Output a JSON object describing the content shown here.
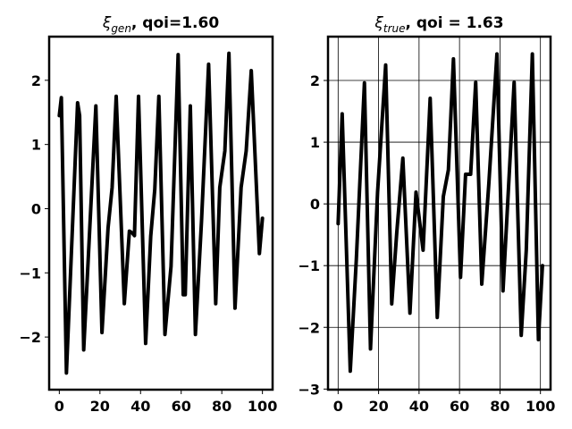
{
  "chart_data": [
    {
      "type": "line",
      "title_symbol": "ξ",
      "title_subscript": "gen",
      "title_rest": ", qoi=1.60",
      "x": [
        0,
        1,
        3.5,
        9,
        10,
        12,
        18,
        21,
        24,
        26,
        28,
        32,
        34.5,
        36,
        37,
        39,
        42.5,
        45,
        47,
        49,
        52,
        55,
        58.5,
        61,
        62,
        64.5,
        67,
        70,
        73.5,
        77,
        79,
        81.5,
        83.5,
        86.5,
        89.5,
        92,
        94.5,
        98.5,
        100
      ],
      "series": [
        {
          "color": "#000000",
          "values": [
            1.45,
            1.73,
            -2.56,
            1.65,
            1.45,
            -2.2,
            1.6,
            -1.93,
            -0.3,
            0.33,
            1.75,
            -1.48,
            -0.35,
            -0.38,
            -0.42,
            1.75,
            -2.1,
            -0.43,
            0.3,
            1.75,
            -1.96,
            -0.9,
            2.4,
            -1.34,
            -1.34,
            1.6,
            -1.96,
            -0.2,
            2.25,
            -1.48,
            0.33,
            0.9,
            2.42,
            -1.55,
            0.33,
            0.9,
            2.15,
            -0.7,
            -0.15
          ]
        }
      ],
      "xlim": [
        -5,
        105
      ],
      "ylim": [
        -2.82,
        2.68
      ],
      "xticks": [
        0,
        20,
        40,
        60,
        80,
        100
      ],
      "yticks": [
        {
          "value": -2,
          "label": "−2"
        },
        {
          "value": -1,
          "label": "−1"
        },
        0,
        1,
        2
      ],
      "grid": false
    },
    {
      "type": "line",
      "title_symbol": "ξ",
      "title_subscript": "true",
      "title_rest": ", qoi = 1.63",
      "x": [
        0,
        2,
        6,
        9,
        13,
        16,
        19.5,
        23.5,
        26.5,
        29,
        32,
        35.5,
        38.5,
        42,
        45.5,
        49,
        52,
        54.5,
        57,
        60.5,
        63,
        65.5,
        68,
        71,
        74.5,
        78.5,
        81.5,
        87,
        90.5,
        93,
        96,
        99,
        101
      ],
      "series": [
        {
          "color": "#000000",
          "values": [
            -0.32,
            1.46,
            -2.71,
            -0.9,
            1.96,
            -2.35,
            0.19,
            2.25,
            -1.62,
            -0.46,
            0.74,
            -1.77,
            0.19,
            -0.75,
            1.71,
            -1.84,
            0.12,
            0.55,
            2.35,
            -1.19,
            0.48,
            0.48,
            1.97,
            -1.3,
            0.33,
            2.43,
            -1.41,
            1.97,
            -2.13,
            -0.75,
            2.43,
            -2.2,
            -1
          ]
        }
      ],
      "xlim": [
        -5,
        105
      ],
      "ylim": [
        -3.01,
        2.71
      ],
      "xticks": [
        0,
        20,
        40,
        60,
        80,
        100
      ],
      "yticks": [
        {
          "value": -3,
          "label": "−3"
        },
        {
          "value": -2,
          "label": "−2"
        },
        {
          "value": -1,
          "label": "−1"
        },
        0,
        1,
        2
      ],
      "grid": true
    }
  ]
}
